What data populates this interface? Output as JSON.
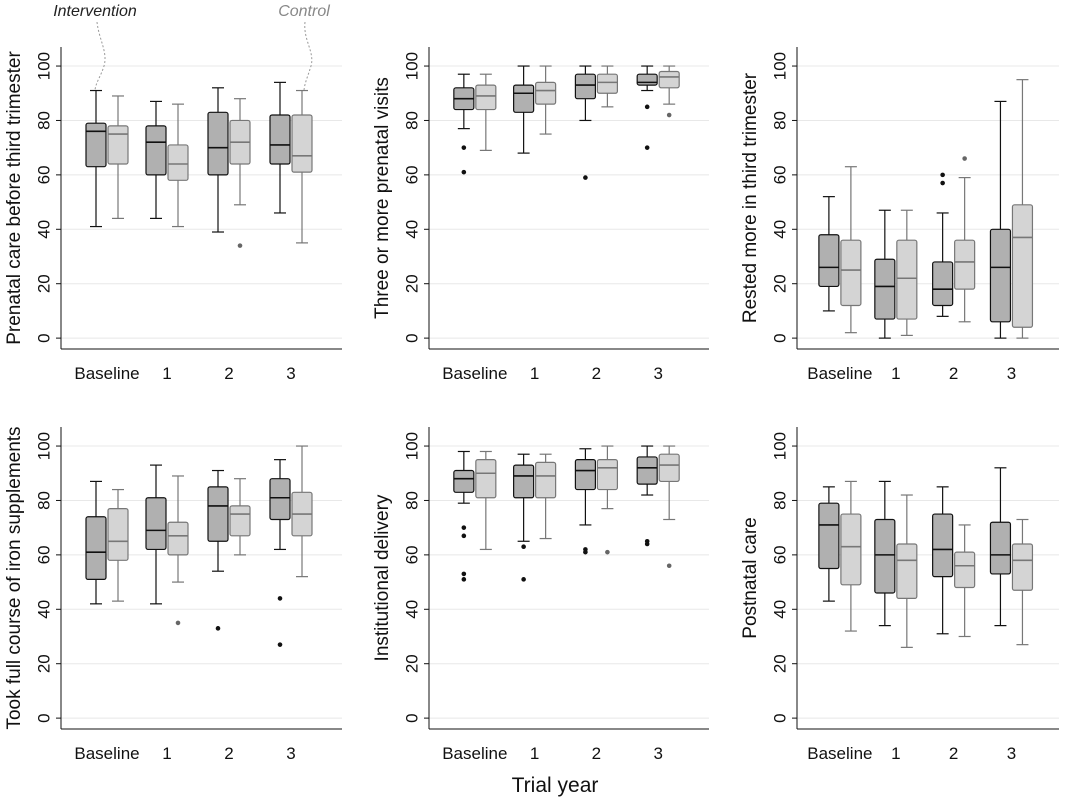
{
  "figure": {
    "xlabel": "Trial year",
    "annotation_intervention": "Intervention",
    "annotation_control": "Control",
    "colors": {
      "intervention_fill": "#b0b0b0",
      "intervention_stroke": "#111111",
      "control_fill": "#d4d4d4",
      "control_stroke": "#777777",
      "gridline": "#e8e8e8"
    }
  },
  "chart_data": [
    {
      "type": "boxplot",
      "ylabel": "Prenatal care before third trimester",
      "categories": [
        "Baseline",
        "1",
        "2",
        "3"
      ],
      "yticks": [
        0,
        20,
        40,
        60,
        80,
        100
      ],
      "ylim": [
        -4,
        107
      ],
      "series": [
        {
          "name": "Intervention",
          "boxes": [
            {
              "min": 41,
              "q1": 63,
              "median": 76,
              "q3": 79,
              "max": 91,
              "outliers": []
            },
            {
              "min": 44,
              "q1": 60,
              "median": 72,
              "q3": 78,
              "max": 87,
              "outliers": []
            },
            {
              "min": 39,
              "q1": 60,
              "median": 70,
              "q3": 83,
              "max": 92,
              "outliers": []
            },
            {
              "min": 46,
              "q1": 64,
              "median": 71,
              "q3": 82,
              "max": 94,
              "outliers": []
            }
          ]
        },
        {
          "name": "Control",
          "boxes": [
            {
              "min": 44,
              "q1": 64,
              "median": 75,
              "q3": 78,
              "max": 89,
              "outliers": []
            },
            {
              "min": 41,
              "q1": 58,
              "median": 64,
              "q3": 71,
              "max": 86,
              "outliers": []
            },
            {
              "min": 49,
              "q1": 64,
              "median": 72,
              "q3": 80,
              "max": 88,
              "outliers": [
                34
              ]
            },
            {
              "min": 35,
              "q1": 61,
              "median": 67,
              "q3": 82,
              "max": 91,
              "outliers": []
            }
          ]
        }
      ]
    },
    {
      "type": "boxplot",
      "ylabel": "Three or more prenatal visits",
      "categories": [
        "Baseline",
        "1",
        "2",
        "3"
      ],
      "yticks": [
        0,
        20,
        40,
        60,
        80,
        100
      ],
      "ylim": [
        -4,
        107
      ],
      "series": [
        {
          "name": "Intervention",
          "boxes": [
            {
              "min": 77,
              "q1": 84,
              "median": 88,
              "q3": 92,
              "max": 97,
              "outliers": [
                70,
                61
              ]
            },
            {
              "min": 68,
              "q1": 83,
              "median": 90,
              "q3": 93,
              "max": 100,
              "outliers": []
            },
            {
              "min": 80,
              "q1": 88,
              "median": 93,
              "q3": 97,
              "max": 100,
              "outliers": [
                59
              ]
            },
            {
              "min": 91,
              "q1": 93,
              "median": 94,
              "q3": 97,
              "max": 100,
              "outliers": [
                85,
                70
              ]
            }
          ]
        },
        {
          "name": "Control",
          "boxes": [
            {
              "min": 69,
              "q1": 84,
              "median": 89,
              "q3": 93,
              "max": 97,
              "outliers": []
            },
            {
              "min": 75,
              "q1": 86,
              "median": 91,
              "q3": 94,
              "max": 100,
              "outliers": []
            },
            {
              "min": 85,
              "q1": 90,
              "median": 94,
              "q3": 97,
              "max": 100,
              "outliers": []
            },
            {
              "min": 86,
              "q1": 92,
              "median": 96,
              "q3": 98,
              "max": 100,
              "outliers": [
                82
              ]
            }
          ]
        }
      ]
    },
    {
      "type": "boxplot",
      "ylabel": "Rested more in third trimester",
      "categories": [
        "Baseline",
        "1",
        "2",
        "3"
      ],
      "yticks": [
        0,
        20,
        40,
        60,
        80,
        100
      ],
      "ylim": [
        -4,
        107
      ],
      "series": [
        {
          "name": "Intervention",
          "boxes": [
            {
              "min": 10,
              "q1": 19,
              "median": 26,
              "q3": 38,
              "max": 52,
              "outliers": []
            },
            {
              "min": 0,
              "q1": 7,
              "median": 19,
              "q3": 29,
              "max": 47,
              "outliers": []
            },
            {
              "min": 8,
              "q1": 12,
              "median": 18,
              "q3": 28,
              "max": 46,
              "outliers": [
                60,
                57
              ]
            },
            {
              "min": 0,
              "q1": 6,
              "median": 26,
              "q3": 40,
              "max": 87,
              "outliers": []
            }
          ]
        },
        {
          "name": "Control",
          "boxes": [
            {
              "min": 2,
              "q1": 12,
              "median": 25,
              "q3": 36,
              "max": 63,
              "outliers": []
            },
            {
              "min": 1,
              "q1": 7,
              "median": 22,
              "q3": 36,
              "max": 47,
              "outliers": []
            },
            {
              "min": 6,
              "q1": 18,
              "median": 28,
              "q3": 36,
              "max": 59,
              "outliers": [
                66
              ]
            },
            {
              "min": 0,
              "q1": 4,
              "median": 37,
              "q3": 49,
              "max": 95,
              "outliers": []
            }
          ]
        }
      ]
    },
    {
      "type": "boxplot",
      "ylabel": "Took full course of iron supplements",
      "categories": [
        "Baseline",
        "1",
        "2",
        "3"
      ],
      "yticks": [
        0,
        20,
        40,
        60,
        80,
        100
      ],
      "ylim": [
        -4,
        107
      ],
      "series": [
        {
          "name": "Intervention",
          "boxes": [
            {
              "min": 42,
              "q1": 51,
              "median": 61,
              "q3": 74,
              "max": 87,
              "outliers": []
            },
            {
              "min": 42,
              "q1": 62,
              "median": 69,
              "q3": 81,
              "max": 93,
              "outliers": []
            },
            {
              "min": 54,
              "q1": 65,
              "median": 78,
              "q3": 85,
              "max": 91,
              "outliers": [
                33
              ]
            },
            {
              "min": 62,
              "q1": 73,
              "median": 81,
              "q3": 88,
              "max": 95,
              "outliers": [
                44,
                27
              ]
            }
          ]
        },
        {
          "name": "Control",
          "boxes": [
            {
              "min": 43,
              "q1": 58,
              "median": 65,
              "q3": 77,
              "max": 84,
              "outliers": []
            },
            {
              "min": 50,
              "q1": 60,
              "median": 67,
              "q3": 72,
              "max": 89,
              "outliers": [
                35
              ]
            },
            {
              "min": 60,
              "q1": 67,
              "median": 75,
              "q3": 78,
              "max": 88,
              "outliers": []
            },
            {
              "min": 52,
              "q1": 67,
              "median": 75,
              "q3": 83,
              "max": 100,
              "outliers": []
            }
          ]
        }
      ]
    },
    {
      "type": "boxplot",
      "ylabel": "Institutional delivery",
      "categories": [
        "Baseline",
        "1",
        "2",
        "3"
      ],
      "yticks": [
        0,
        20,
        40,
        60,
        80,
        100
      ],
      "ylim": [
        -4,
        107
      ],
      "series": [
        {
          "name": "Intervention",
          "boxes": [
            {
              "min": 79,
              "q1": 83,
              "median": 88,
              "q3": 91,
              "max": 98,
              "outliers": [
                70,
                67,
                53,
                51
              ]
            },
            {
              "min": 65,
              "q1": 81,
              "median": 89,
              "q3": 93,
              "max": 97,
              "outliers": [
                63,
                51
              ]
            },
            {
              "min": 71,
              "q1": 84,
              "median": 91,
              "q3": 95,
              "max": 99,
              "outliers": [
                62,
                61
              ]
            },
            {
              "min": 82,
              "q1": 86,
              "median": 92,
              "q3": 96,
              "max": 100,
              "outliers": [
                65,
                64
              ]
            }
          ]
        },
        {
          "name": "Control",
          "boxes": [
            {
              "min": 62,
              "q1": 81,
              "median": 90,
              "q3": 95,
              "max": 98,
              "outliers": []
            },
            {
              "min": 66,
              "q1": 81,
              "median": 89,
              "q3": 94,
              "max": 97,
              "outliers": []
            },
            {
              "min": 77,
              "q1": 84,
              "median": 92,
              "q3": 95,
              "max": 100,
              "outliers": [
                61
              ]
            },
            {
              "min": 73,
              "q1": 87,
              "median": 93,
              "q3": 97,
              "max": 100,
              "outliers": [
                56
              ]
            }
          ]
        }
      ]
    },
    {
      "type": "boxplot",
      "ylabel": "Postnatal care",
      "categories": [
        "Baseline",
        "1",
        "2",
        "3"
      ],
      "yticks": [
        0,
        20,
        40,
        60,
        80,
        100
      ],
      "ylim": [
        -4,
        107
      ],
      "series": [
        {
          "name": "Intervention",
          "boxes": [
            {
              "min": 43,
              "q1": 55,
              "median": 71,
              "q3": 79,
              "max": 85,
              "outliers": []
            },
            {
              "min": 34,
              "q1": 46,
              "median": 60,
              "q3": 73,
              "max": 87,
              "outliers": []
            },
            {
              "min": 31,
              "q1": 52,
              "median": 62,
              "q3": 75,
              "max": 85,
              "outliers": []
            },
            {
              "min": 34,
              "q1": 53,
              "median": 60,
              "q3": 72,
              "max": 92,
              "outliers": []
            }
          ]
        },
        {
          "name": "Control",
          "boxes": [
            {
              "min": 32,
              "q1": 49,
              "median": 63,
              "q3": 75,
              "max": 87,
              "outliers": []
            },
            {
              "min": 26,
              "q1": 44,
              "median": 58,
              "q3": 64,
              "max": 82,
              "outliers": []
            },
            {
              "min": 30,
              "q1": 48,
              "median": 56,
              "q3": 61,
              "max": 71,
              "outliers": []
            },
            {
              "min": 27,
              "q1": 47,
              "median": 58,
              "q3": 64,
              "max": 73,
              "outliers": []
            }
          ]
        }
      ]
    }
  ]
}
